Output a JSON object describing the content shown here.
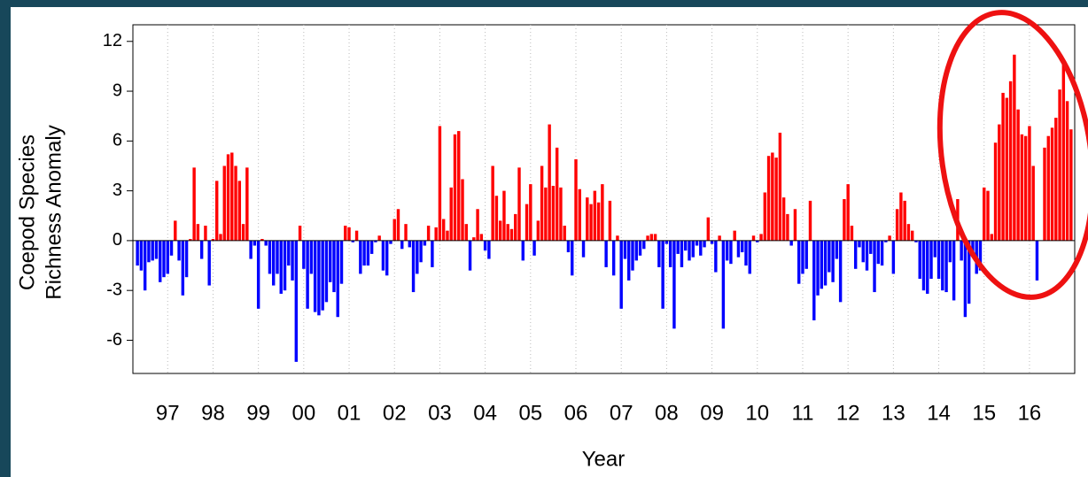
{
  "chart_data": {
    "type": "bar",
    "ylabel": [
      "Coepod Species",
      "Richness Anomaly"
    ],
    "xlabel": "Year",
    "categories": [
      null,
      null,
      null,
      null,
      null,
      null,
      null,
      null,
      "97",
      null,
      null,
      null,
      null,
      null,
      null,
      null,
      null,
      null,
      null,
      null,
      "98",
      null,
      null,
      null,
      null,
      null,
      null,
      null,
      null,
      null,
      null,
      null,
      "99",
      null,
      null,
      null,
      null,
      null,
      null,
      null,
      null,
      null,
      null,
      null,
      "00",
      null,
      null,
      null,
      null,
      null,
      null,
      null,
      null,
      null,
      null,
      null,
      "01",
      null,
      null,
      null,
      null,
      null,
      null,
      null,
      null,
      null,
      null,
      null,
      "02",
      null,
      null,
      null,
      null,
      null,
      null,
      null,
      null,
      null,
      null,
      null,
      "03",
      null,
      null,
      null,
      null,
      null,
      null,
      null,
      null,
      null,
      null,
      null,
      "04",
      null,
      null,
      null,
      null,
      null,
      null,
      null,
      null,
      null,
      null,
      null,
      "05",
      null,
      null,
      null,
      null,
      null,
      null,
      null,
      null,
      null,
      null,
      null,
      "06",
      null,
      null,
      null,
      null,
      null,
      null,
      null,
      null,
      null,
      null,
      null,
      "07",
      null,
      null,
      null,
      null,
      null,
      null,
      null,
      null,
      null,
      null,
      null,
      "08",
      null,
      null,
      null,
      null,
      null,
      null,
      null,
      null,
      null,
      null,
      null,
      "09",
      null,
      null,
      null,
      null,
      null,
      null,
      null,
      null,
      null,
      null,
      null,
      "10",
      null,
      null,
      null,
      null,
      null,
      null,
      null,
      null,
      null,
      null,
      null,
      "11",
      null,
      null,
      null,
      null,
      null,
      null,
      null,
      null,
      null,
      null,
      null,
      "12",
      null,
      null,
      null,
      null,
      null,
      null,
      null,
      null,
      null,
      null,
      null,
      "13",
      null,
      null,
      null,
      null,
      null,
      null,
      null,
      null,
      null,
      null,
      null,
      "14",
      null,
      null,
      null,
      null,
      null,
      null,
      null,
      null,
      null,
      null,
      null,
      "15",
      null,
      null,
      null,
      null,
      null,
      null,
      null,
      null,
      null,
      null,
      null,
      "16",
      null,
      null,
      null,
      null,
      null,
      null,
      null,
      null,
      null,
      null,
      null
    ],
    "values": [
      -1.5,
      -1.8,
      -3.0,
      -1.3,
      -1.2,
      -1.1,
      -2.5,
      -2.2,
      -2.0,
      -0.9,
      1.2,
      -1.2,
      -3.3,
      -2.2,
      0.1,
      4.4,
      1.0,
      -1.1,
      0.9,
      -2.7,
      0.1,
      3.6,
      0.4,
      4.5,
      5.2,
      5.3,
      4.5,
      3.6,
      1.0,
      4.4,
      -1.1,
      -0.3,
      -4.1,
      0.1,
      -0.3,
      -2.0,
      -2.7,
      -2.0,
      -3.2,
      -3.0,
      -1.5,
      -2.4,
      -7.3,
      0.9,
      -1.7,
      -4.1,
      -2.0,
      -4.3,
      -4.5,
      -4.2,
      -3.7,
      -2.5,
      -3.1,
      -4.6,
      -2.6,
      0.9,
      0.8,
      -0.1,
      0.6,
      -2.0,
      -1.5,
      -1.5,
      -0.8,
      -0.1,
      0.3,
      -1.8,
      -2.1,
      -0.2,
      1.3,
      1.9,
      -0.5,
      1.0,
      -0.4,
      -3.1,
      -2.0,
      -1.3,
      -0.3,
      0.9,
      -1.6,
      0.8,
      6.9,
      1.3,
      0.6,
      3.2,
      6.4,
      6.6,
      3.7,
      1.0,
      -1.8,
      0.2,
      1.9,
      0.4,
      -0.6,
      -1.1,
      4.5,
      2.7,
      1.2,
      3.0,
      1.0,
      0.7,
      1.6,
      4.4,
      -1.2,
      2.2,
      3.4,
      -0.9,
      1.2,
      4.5,
      3.2,
      7.0,
      3.3,
      5.6,
      3.2,
      0.9,
      -0.7,
      -2.1,
      4.9,
      3.1,
      -1.0,
      2.6,
      2.2,
      3.0,
      2.3,
      3.4,
      -1.6,
      2.4,
      -2.1,
      0.3,
      -4.1,
      -1.1,
      -2.4,
      -1.8,
      -1.2,
      -0.9,
      -0.5,
      0.3,
      0.4,
      0.4,
      -1.6,
      -4.1,
      -0.2,
      -1.6,
      -5.3,
      -0.8,
      -1.6,
      -0.6,
      -1.2,
      -1.0,
      -0.3,
      -0.9,
      -0.4,
      1.4,
      -0.2,
      -1.9,
      0.3,
      -5.3,
      -1.2,
      -1.4,
      0.6,
      -1.0,
      -0.7,
      -1.5,
      -2.0,
      0.3,
      -0.1,
      0.4,
      2.9,
      5.1,
      5.3,
      5.0,
      6.5,
      2.6,
      1.6,
      -0.3,
      1.9,
      -2.6,
      -2.0,
      -1.7,
      2.4,
      -4.8,
      -3.3,
      -2.9,
      -2.7,
      -1.9,
      -2.5,
      -1.1,
      -3.7,
      2.5,
      3.4,
      0.9,
      -1.7,
      -0.4,
      -1.3,
      -1.8,
      -0.8,
      -3.1,
      -1.4,
      -1.5,
      -0.1,
      0.3,
      -2.0,
      1.9,
      2.9,
      2.4,
      1.0,
      0.6,
      -0.1,
      -2.3,
      -3.0,
      -3.2,
      -2.3,
      -1.0,
      -2.3,
      -3.0,
      -3.1,
      -1.3,
      -3.6,
      2.5,
      -1.2,
      -4.6,
      -3.8,
      -0.9,
      -2.0,
      -1.8,
      3.2,
      3.0,
      0.4,
      5.9,
      7.0,
      8.9,
      8.6,
      9.6,
      11.2,
      7.9,
      6.4,
      6.3,
      6.9,
      4.5,
      -2.4,
      0.0,
      5.6,
      6.3,
      6.8,
      7.4,
      9.1,
      10.6,
      8.4,
      6.7
    ],
    "positive_color": "#ff0000",
    "negative_color": "#0000ff",
    "ylim": [
      -8,
      13
    ],
    "yticks": [
      -6,
      -3,
      0,
      3,
      6,
      9,
      12
    ],
    "grid": true
  }
}
